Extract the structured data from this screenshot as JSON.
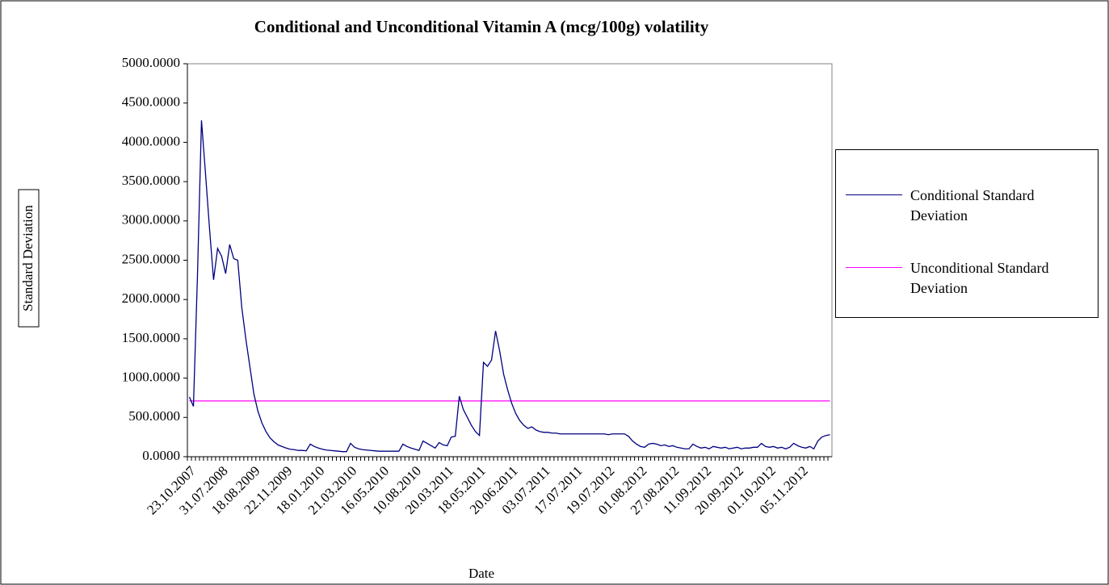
{
  "chart_data": {
    "type": "line",
    "title": "Conditional and Unconditional Vitamin A (mcg/100g) volatility",
    "x_label": "Date",
    "y_label": "Standard Deviation",
    "categories": [
      "23.10.2007",
      null,
      null,
      null,
      null,
      null,
      null,
      null,
      "31.07.2008",
      null,
      null,
      null,
      null,
      null,
      null,
      null,
      "18.08.2009",
      null,
      null,
      null,
      null,
      null,
      null,
      null,
      "22.11.2009",
      null,
      null,
      null,
      null,
      null,
      null,
      null,
      "18.01.2010",
      null,
      null,
      null,
      null,
      null,
      null,
      null,
      "21.03.2010",
      null,
      null,
      null,
      null,
      null,
      null,
      null,
      "16.05.2010",
      null,
      null,
      null,
      null,
      null,
      null,
      null,
      "10.08.2010",
      null,
      null,
      null,
      null,
      null,
      null,
      null,
      "20.03.2011",
      null,
      null,
      null,
      null,
      null,
      null,
      null,
      "18.05.2011",
      null,
      null,
      null,
      null,
      null,
      null,
      null,
      "20.06.2011",
      null,
      null,
      null,
      null,
      null,
      null,
      null,
      "03.07.2011",
      null,
      null,
      null,
      null,
      null,
      null,
      null,
      "17.07.2011",
      null,
      null,
      null,
      null,
      null,
      null,
      null,
      "19.07.2012",
      null,
      null,
      null,
      null,
      null,
      null,
      null,
      "01.08.2012",
      null,
      null,
      null,
      null,
      null,
      null,
      null,
      "27.08.2012",
      null,
      null,
      null,
      null,
      null,
      null,
      null,
      "11.09.2012",
      null,
      null,
      null,
      null,
      null,
      null,
      null,
      "20.09.2012",
      null,
      null,
      null,
      null,
      null,
      null,
      null,
      "01.10.2012",
      null,
      null,
      null,
      null,
      null,
      null,
      null,
      "05.11.2012",
      null,
      null,
      null,
      null,
      null,
      null,
      null
    ],
    "series": [
      {
        "name": "Conditional Standard Deviation",
        "color": "#000080",
        "values": [
          760,
          640,
          2300,
          4280,
          3600,
          2900,
          2250,
          2650,
          2550,
          2330,
          2700,
          2520,
          2500,
          1900,
          1500,
          1150,
          800,
          580,
          430,
          320,
          240,
          190,
          150,
          130,
          110,
          95,
          90,
          80,
          80,
          75,
          160,
          130,
          110,
          95,
          85,
          80,
          75,
          70,
          65,
          65,
          170,
          120,
          100,
          90,
          85,
          80,
          75,
          70,
          70,
          70,
          70,
          70,
          70,
          160,
          130,
          110,
          95,
          80,
          200,
          170,
          140,
          110,
          180,
          150,
          140,
          250,
          260,
          770,
          600,
          500,
          400,
          320,
          270,
          1200,
          1150,
          1230,
          1600,
          1350,
          1050,
          850,
          680,
          550,
          460,
          400,
          360,
          380,
          340,
          320,
          310,
          310,
          300,
          300,
          290,
          290,
          290,
          290,
          290,
          290,
          290,
          290,
          290,
          290,
          290,
          290,
          280,
          290,
          290,
          290,
          290,
          260,
          200,
          160,
          130,
          120,
          160,
          170,
          160,
          140,
          150,
          130,
          140,
          120,
          110,
          100,
          100,
          160,
          130,
          110,
          120,
          100,
          130,
          120,
          110,
          120,
          100,
          110,
          120,
          100,
          110,
          110,
          120,
          120,
          170,
          130,
          120,
          130,
          110,
          120,
          100,
          120,
          170,
          140,
          120,
          110,
          130,
          100,
          200,
          250,
          270,
          280
        ]
      },
      {
        "name": "Unconditional Standard Deviation",
        "color": "#ff00ff",
        "values": [
          710,
          710,
          710,
          710,
          710,
          710,
          710,
          710,
          710,
          710,
          710,
          710,
          710,
          710,
          710,
          710,
          710,
          710,
          710,
          710,
          710,
          710,
          710,
          710,
          710,
          710,
          710,
          710,
          710,
          710,
          710,
          710,
          710,
          710,
          710,
          710,
          710,
          710,
          710,
          710,
          710,
          710,
          710,
          710,
          710,
          710,
          710,
          710,
          710,
          710,
          710,
          710,
          710,
          710,
          710,
          710,
          710,
          710,
          710,
          710,
          710,
          710,
          710,
          710,
          710,
          710,
          710,
          710,
          710,
          710,
          710,
          710,
          710,
          710,
          710,
          710,
          710,
          710,
          710,
          710,
          710,
          710,
          710,
          710,
          710,
          710,
          710,
          710,
          710,
          710,
          710,
          710,
          710,
          710,
          710,
          710,
          710,
          710,
          710,
          710,
          710,
          710,
          710,
          710,
          710,
          710,
          710,
          710,
          710,
          710,
          710,
          710,
          710,
          710,
          710,
          710,
          710,
          710,
          710,
          710,
          710,
          710,
          710,
          710,
          710,
          710,
          710,
          710,
          710,
          710,
          710,
          710,
          710,
          710,
          710,
          710,
          710,
          710,
          710,
          710,
          710,
          710,
          710,
          710,
          710,
          710,
          710,
          710,
          710,
          710,
          710,
          710,
          710,
          710,
          710,
          710,
          710,
          710,
          710,
          710
        ]
      }
    ],
    "ylim": [
      0,
      5000
    ],
    "yticks": [
      {
        "value": 0,
        "label": "0.0000"
      },
      {
        "value": 500,
        "label": "500.0000"
      },
      {
        "value": 1000,
        "label": "1000.0000"
      },
      {
        "value": 1500,
        "label": "1500.0000"
      },
      {
        "value": 2000,
        "label": "2000.0000"
      },
      {
        "value": 2500,
        "label": "2500.0000"
      },
      {
        "value": 3000,
        "label": "3000.0000"
      },
      {
        "value": 3500,
        "label": "3500.0000"
      },
      {
        "value": 4000,
        "label": "4000.0000"
      },
      {
        "value": 4500,
        "label": "4500.0000"
      },
      {
        "value": 5000,
        "label": "5000.0000"
      }
    ],
    "legend_position": "right"
  }
}
